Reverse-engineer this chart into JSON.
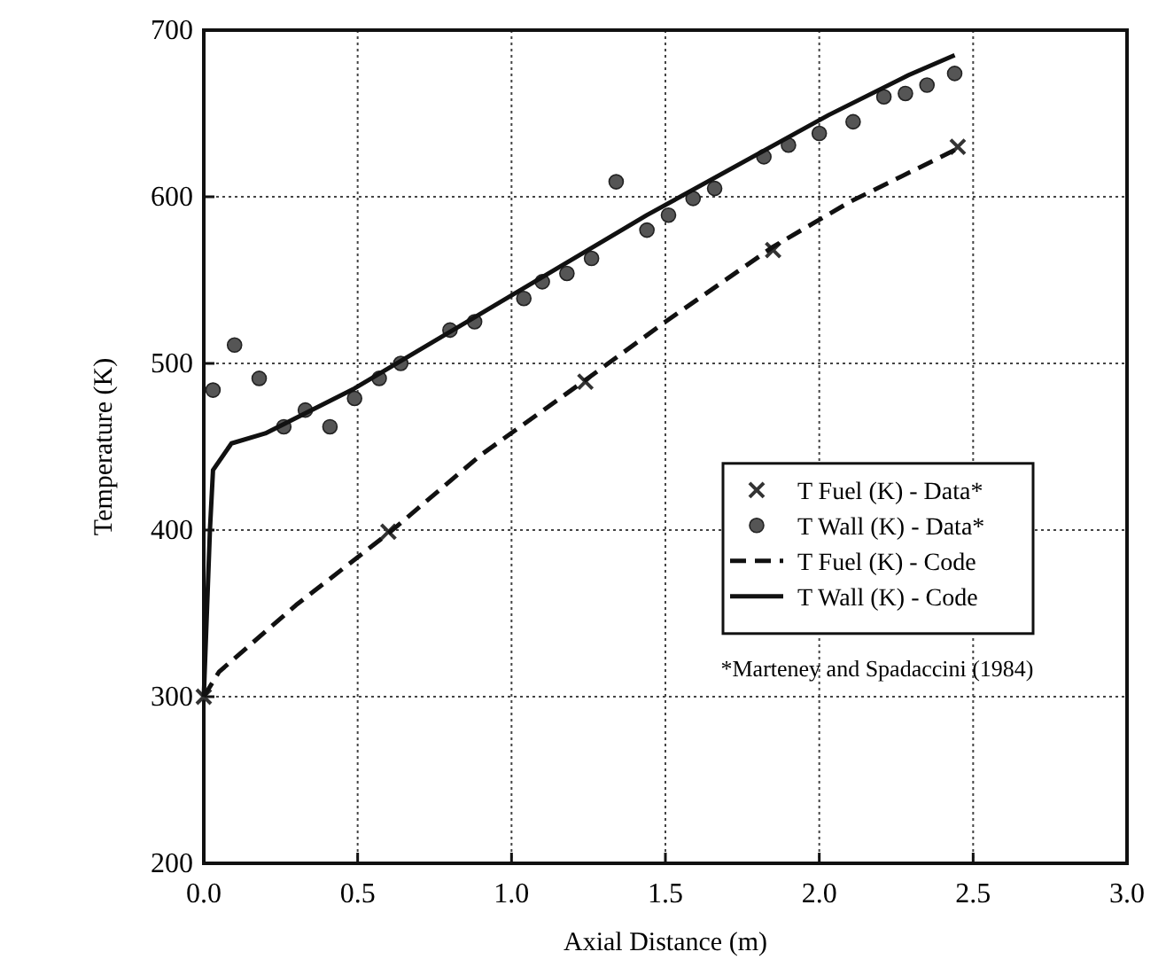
{
  "chart_data": {
    "type": "scatter",
    "xlabel": "Axial Distance  (m)",
    "ylabel": "Temperature  (K)",
    "xlim": [
      0,
      3
    ],
    "xticks": [
      {
        "value": 0,
        "label": "0.0"
      },
      {
        "value": 0.5,
        "label": "0.5"
      },
      {
        "value": 1,
        "label": "1.0"
      },
      {
        "value": 1.5,
        "label": "1.5"
      },
      {
        "value": 2,
        "label": "2.0"
      },
      {
        "value": 2.5,
        "label": "2.5"
      },
      {
        "value": 3,
        "label": "3.0"
      }
    ],
    "ylim": [
      200,
      700
    ],
    "yticks": [
      200,
      300,
      400,
      500,
      600,
      700
    ],
    "grid": true,
    "legend": "right",
    "annotations": [
      "*Marteney and Spadaccini (1984)"
    ],
    "series": [
      {
        "name": "T Fuel (K) - Data*",
        "marker": "cross",
        "color": "#333333",
        "x": [
          0.0,
          0.6,
          1.24,
          1.85,
          2.45
        ],
        "values": [
          300,
          399,
          489,
          568,
          630
        ]
      },
      {
        "name": "T Wall (K) - Data*",
        "marker": "circle",
        "color": "#555555",
        "x": [
          0.03,
          0.1,
          0.18,
          0.26,
          0.33,
          0.41,
          0.49,
          0.57,
          0.64,
          0.8,
          0.88,
          1.04,
          1.1,
          1.18,
          1.26,
          1.34,
          1.44,
          1.51,
          1.59,
          1.66,
          1.82,
          1.9,
          2.0,
          2.11,
          2.21,
          2.28,
          2.35,
          2.44
        ],
        "values": [
          484,
          511,
          491,
          462,
          472,
          462,
          479,
          491,
          500,
          520,
          525,
          539,
          549,
          554,
          563,
          609,
          580,
          589,
          599,
          605,
          624,
          631,
          638,
          645,
          660,
          662,
          667,
          674
        ]
      },
      {
        "name": "T Fuel (K) - Code",
        "type": "line",
        "line_style": "dashed",
        "marker": "none",
        "color": "#111111",
        "x": [
          0.0,
          0.05,
          0.3,
          0.6,
          0.9,
          1.24,
          1.5,
          1.85,
          2.1,
          2.44
        ],
        "values": [
          300,
          315,
          355,
          398,
          445,
          490,
          525,
          570,
          597,
          628
        ]
      },
      {
        "name": "T Wall (K) - Code",
        "type": "line",
        "line_style": "solid",
        "marker": "none",
        "color": "#111111",
        "x": [
          0.0,
          0.02,
          0.03,
          0.09,
          0.2,
          0.49,
          1.02,
          1.44,
          2.03,
          2.29,
          2.44
        ],
        "values": [
          300,
          400,
          436,
          452,
          458,
          485,
          543,
          589,
          649,
          673,
          685
        ]
      }
    ]
  }
}
